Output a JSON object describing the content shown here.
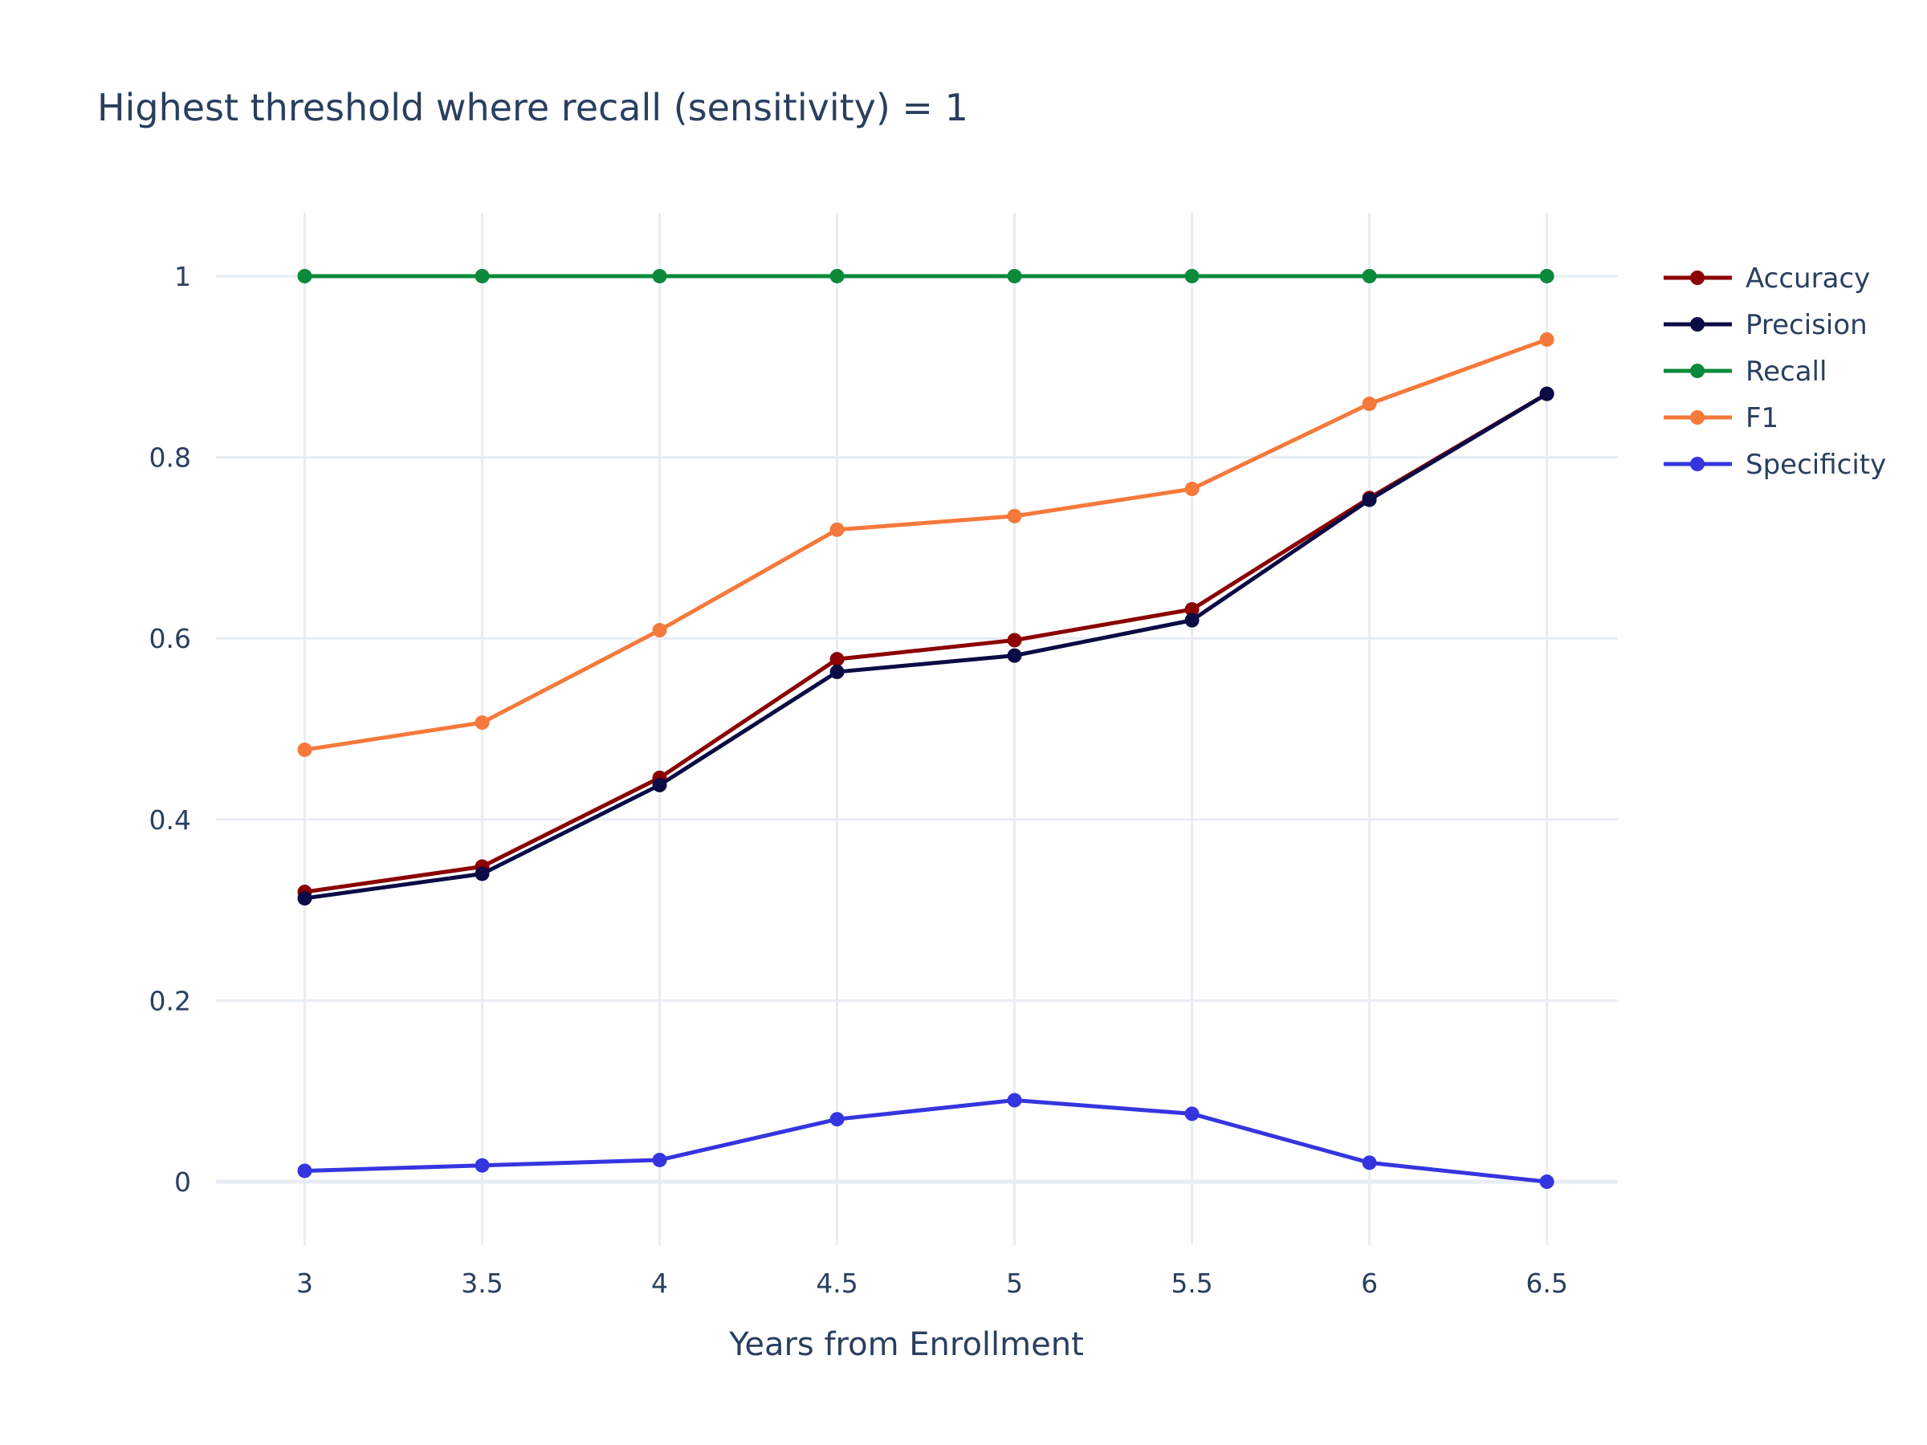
{
  "chart_data": {
    "type": "line",
    "title": "Highest threshold where recall (sensitivity) = 1",
    "xlabel": "Years from Enrollment",
    "ylabel": "",
    "x": [
      3,
      3.5,
      4,
      4.5,
      5,
      5.5,
      6,
      6.5
    ],
    "x_tick_labels": [
      "3",
      "3.5",
      "4",
      "4.5",
      "5",
      "5.5",
      "6",
      "6.5"
    ],
    "y_tick_values": [
      0,
      0.2,
      0.4,
      0.6,
      0.8,
      1
    ],
    "y_tick_labels": [
      "0",
      "0.2",
      "0.4",
      "0.6",
      "0.8",
      "1"
    ],
    "xlim": [
      2.75,
      6.7
    ],
    "ylim": [
      -0.07,
      1.07
    ],
    "grid": true,
    "legend_position": "top-right",
    "series": [
      {
        "name": "Accuracy",
        "color": "#8b0000",
        "values": [
          0.32,
          0.348,
          0.446,
          0.577,
          0.598,
          0.632,
          0.755,
          0.87
        ]
      },
      {
        "name": "Precision",
        "color": "#0b0b45",
        "values": [
          0.313,
          0.34,
          0.438,
          0.563,
          0.581,
          0.62,
          0.753,
          0.87
        ]
      },
      {
        "name": "Recall",
        "color": "#0a8a3a",
        "values": [
          1,
          1,
          1,
          1,
          1,
          1,
          1,
          1
        ]
      },
      {
        "name": "F1",
        "color": "#f5793a",
        "values": [
          0.477,
          0.507,
          0.609,
          0.72,
          0.735,
          0.765,
          0.859,
          0.93
        ]
      },
      {
        "name": "Specificity",
        "color": "#3535e0",
        "values": [
          0.012,
          0.018,
          0.024,
          0.069,
          0.09,
          0.075,
          0.021,
          0.0
        ]
      }
    ]
  }
}
